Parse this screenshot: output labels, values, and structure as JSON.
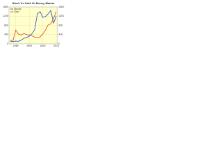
{
  "chart_data": {
    "type": "line",
    "title": "Stock Vs Gold Or Money Market",
    "x": [
      1976,
      1978,
      1980,
      1982,
      1984,
      1986,
      1988,
      1990,
      1992,
      1994,
      1996,
      1998,
      2000,
      2002,
      2004,
      2006,
      2008,
      2010
    ],
    "xlim": [
      1975,
      2011
    ],
    "xticks": [
      1980,
      1990,
      2000,
      2010
    ],
    "ylim": [
      0,
      1600
    ],
    "yticks": [
      0,
      400,
      800,
      1200,
      1600
    ],
    "y2lim": [
      0,
      1600
    ],
    "y2ticks": [
      0,
      400,
      800,
      1200,
      1600
    ],
    "series": [
      {
        "name": "Stocks",
        "color": "#1f3fd0",
        "values": [
          100,
          100,
          120,
          110,
          160,
          240,
          280,
          330,
          440,
          610,
          1300,
          1400,
          1150,
          1180,
          1300,
          1450,
          900,
          1200
        ]
      },
      {
        "name": "Gold",
        "color": "#e8401c",
        "axis": "y2",
        "values": [
          140,
          160,
          600,
          420,
          380,
          450,
          400,
          380,
          350,
          290,
          280,
          300,
          420,
          600,
          820,
          870,
          1100,
          1400
        ]
      }
    ],
    "plot_background": "#ffffcc",
    "grid": true
  }
}
